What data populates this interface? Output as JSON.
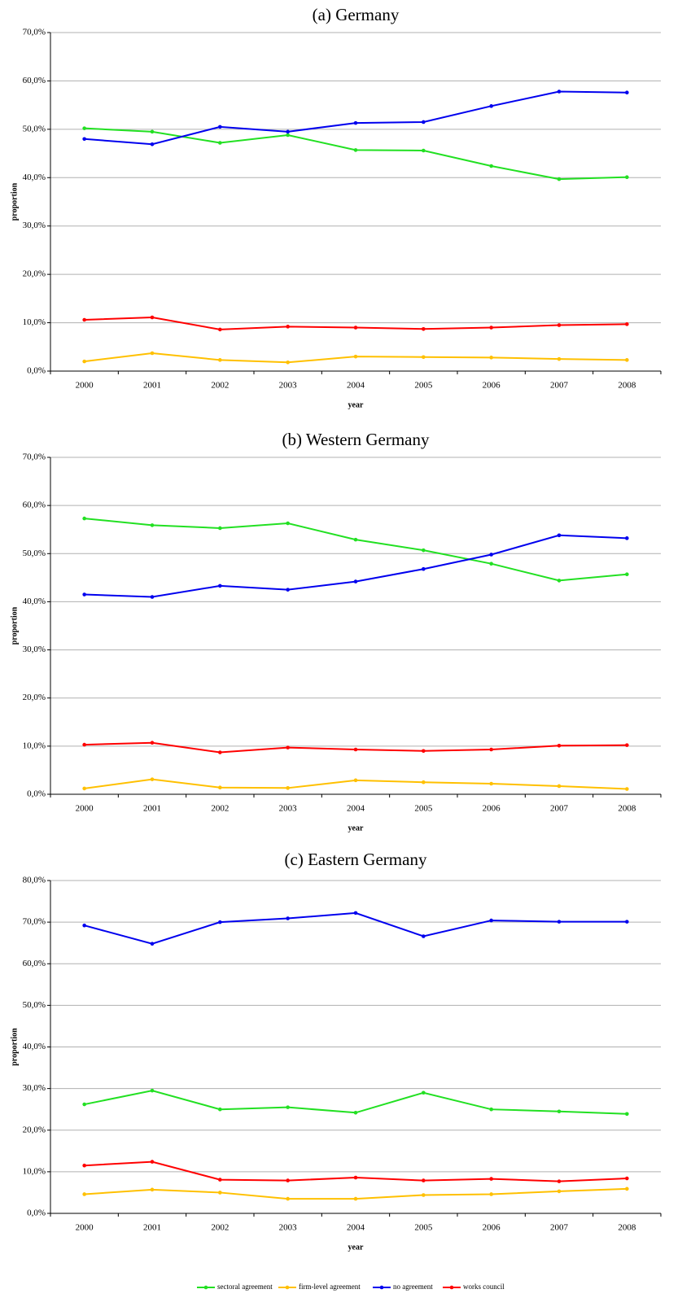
{
  "chart_data": [
    {
      "type": "line",
      "title": "(a) Germany",
      "y_label": "proportion",
      "x_label": "year",
      "categories": [
        "2000",
        "2001",
        "2002",
        "2003",
        "2004",
        "2005",
        "2006",
        "2007",
        "2008"
      ],
      "ylim": [
        0,
        70
      ],
      "yticks": [
        {
          "value": 0,
          "label": "0,0%"
        },
        {
          "value": 10,
          "label": "10,0%"
        },
        {
          "value": 20,
          "label": "20,0%"
        },
        {
          "value": 30,
          "label": "30,0%"
        },
        {
          "value": 40,
          "label": "40,0%"
        },
        {
          "value": 50,
          "label": "50,0%"
        },
        {
          "value": 60,
          "label": "60,0%"
        },
        {
          "value": 70,
          "label": "70,0%"
        }
      ],
      "grid": true,
      "series": [
        {
          "name": "sectoral agreement",
          "color": "#22e022",
          "values": [
            50.2,
            49.5,
            47.2,
            48.8,
            45.7,
            45.6,
            42.4,
            39.7,
            40.1
          ]
        },
        {
          "name": "firm-level agreement",
          "color": "#ffc000",
          "values": [
            2.0,
            3.7,
            2.3,
            1.8,
            3.0,
            2.9,
            2.8,
            2.5,
            2.3
          ]
        },
        {
          "name": "no agreement",
          "color": "#0000ee",
          "values": [
            48.0,
            46.9,
            50.5,
            49.5,
            51.3,
            51.5,
            54.8,
            57.8,
            57.6
          ]
        },
        {
          "name": "works council",
          "color": "#ff0000",
          "values": [
            10.6,
            11.1,
            8.6,
            9.2,
            9.0,
            8.7,
            9.0,
            9.5,
            9.7
          ]
        }
      ]
    },
    {
      "type": "line",
      "title": "(b) Western Germany",
      "y_label": "proportion",
      "x_label": "year",
      "categories": [
        "2000",
        "2001",
        "2002",
        "2003",
        "2004",
        "2005",
        "2006",
        "2007",
        "2008"
      ],
      "ylim": [
        0,
        70
      ],
      "yticks": [
        {
          "value": 0,
          "label": "0,0%"
        },
        {
          "value": 10,
          "label": "10,0%"
        },
        {
          "value": 20,
          "label": "20,0%"
        },
        {
          "value": 30,
          "label": "30,0%"
        },
        {
          "value": 40,
          "label": "40,0%"
        },
        {
          "value": 50,
          "label": "50,0%"
        },
        {
          "value": 60,
          "label": "60,0%"
        },
        {
          "value": 70,
          "label": "70,0%"
        }
      ],
      "grid": true,
      "series": [
        {
          "color": "#22e022",
          "values": [
            57.3,
            55.9,
            55.3,
            56.3,
            52.9,
            50.7,
            47.9,
            44.4,
            45.7
          ]
        },
        {
          "color": "#ffc000",
          "values": [
            1.2,
            3.1,
            1.4,
            1.3,
            2.9,
            2.5,
            2.2,
            1.7,
            1.1
          ]
        },
        {
          "color": "#0000ee",
          "values": [
            41.5,
            41.0,
            43.3,
            42.5,
            44.2,
            46.8,
            49.8,
            53.8,
            53.2
          ]
        },
        {
          "color": "#ff0000",
          "values": [
            10.3,
            10.7,
            8.7,
            9.7,
            9.3,
            9.0,
            9.3,
            10.1,
            10.2
          ]
        }
      ]
    },
    {
      "type": "line",
      "title": "(c) Eastern Germany",
      "y_label": "proportion",
      "x_label": "year",
      "categories": [
        "2000",
        "2001",
        "2002",
        "2003",
        "2004",
        "2005",
        "2006",
        "2007",
        "2008"
      ],
      "ylim": [
        0,
        80
      ],
      "yticks": [
        {
          "value": 0,
          "label": "0,0%"
        },
        {
          "value": 10,
          "label": "10,0%"
        },
        {
          "value": 20,
          "label": "20,0%"
        },
        {
          "value": 30,
          "label": "30,0%"
        },
        {
          "value": 40,
          "label": "40,0%"
        },
        {
          "value": 50,
          "label": "50,0%"
        },
        {
          "value": 60,
          "label": "60,0%"
        },
        {
          "value": 70,
          "label": "70,0%"
        },
        {
          "value": 80,
          "label": "80,0%"
        }
      ],
      "grid": true,
      "series": [
        {
          "color": "#22e022",
          "values": [
            26.2,
            29.5,
            25.0,
            25.5,
            24.2,
            29.0,
            25.0,
            24.5,
            23.9
          ]
        },
        {
          "color": "#ffc000",
          "values": [
            4.6,
            5.7,
            5.0,
            3.5,
            3.5,
            4.4,
            4.6,
            5.3,
            5.9
          ]
        },
        {
          "color": "#0000ee",
          "values": [
            69.2,
            64.8,
            70.0,
            70.9,
            72.2,
            66.6,
            70.4,
            70.1,
            70.1
          ]
        },
        {
          "color": "#ff0000",
          "values": [
            11.5,
            12.4,
            8.1,
            7.9,
            8.6,
            7.9,
            8.3,
            7.7,
            8.4
          ]
        }
      ]
    }
  ]
}
